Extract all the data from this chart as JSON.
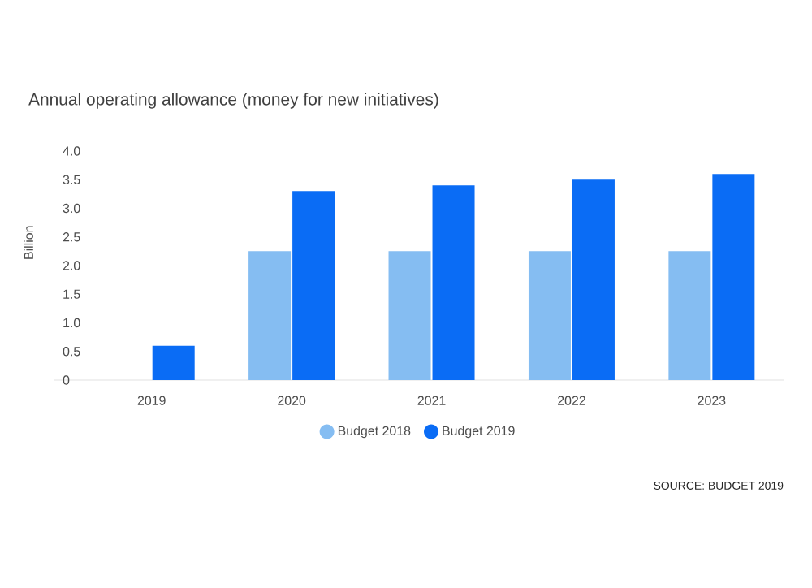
{
  "chart_data": {
    "type": "bar",
    "title": "Annual operating allowance (money for new initiatives)",
    "ylabel": "Billion",
    "categories": [
      "2019",
      "2020",
      "2021",
      "2022",
      "2023"
    ],
    "series": [
      {
        "name": "Budget 2018",
        "color": "#85bdf2",
        "values": [
          null,
          2.25,
          2.25,
          2.25,
          2.25
        ]
      },
      {
        "name": "Budget 2019",
        "color": "#0a6cf5",
        "values": [
          0.6,
          3.3,
          3.4,
          3.5,
          3.6
        ]
      }
    ],
    "ylim": [
      0,
      4
    ],
    "yticks": [
      0,
      0.5,
      {
        "value": 1,
        "label": "1.0"
      },
      1.5,
      {
        "value": 2,
        "label": "2.0"
      },
      2.5,
      {
        "value": 3,
        "label": "3.0"
      },
      3.5,
      {
        "value": 4,
        "label": "4.0"
      }
    ],
    "grid": false,
    "legend": "bottom",
    "annotations": [
      "SOURCE: BUDGET 2019"
    ]
  }
}
